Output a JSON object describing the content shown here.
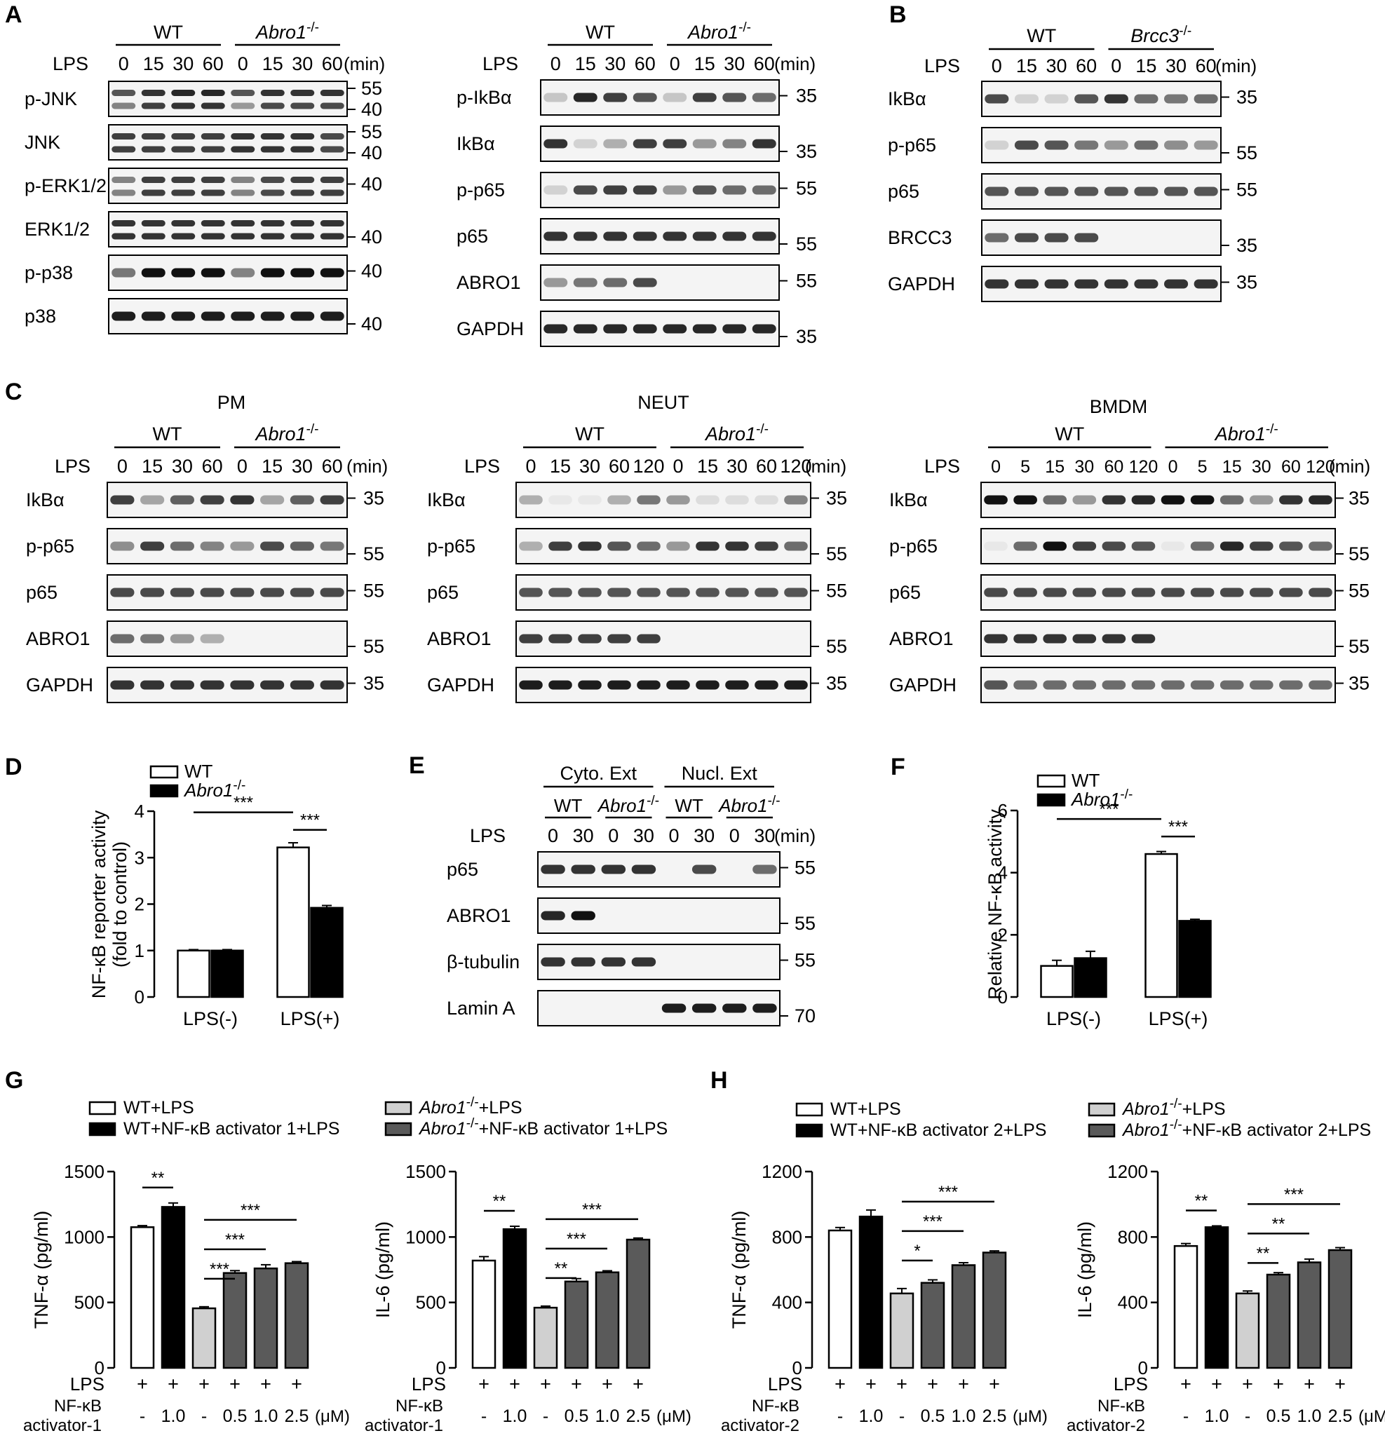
{
  "blots": {
    "A1": {
      "panel_letter": "A",
      "groups": [
        "WT",
        "Abro1-/-"
      ],
      "treatment_label": "LPS",
      "lanes": [
        "0",
        "15",
        "30",
        "60",
        "0",
        "15",
        "30",
        "60"
      ],
      "unit": "(min)",
      "rows": [
        {
          "label": "p-JNK",
          "markers": [
            "55",
            "40"
          ]
        },
        {
          "label": "JNK",
          "markers": [
            "55",
            "40"
          ]
        },
        {
          "label": "p-ERK1/2",
          "markers": [
            "40"
          ]
        },
        {
          "label": "ERK1/2",
          "markers": [
            "40"
          ]
        },
        {
          "label": "p-p38",
          "markers": [
            "40"
          ]
        },
        {
          "label": "p38",
          "markers": [
            "40"
          ]
        }
      ]
    },
    "A2": {
      "groups": [
        "WT",
        "Abro1-/-"
      ],
      "treatment_label": "LPS",
      "lanes": [
        "0",
        "15",
        "30",
        "60",
        "0",
        "15",
        "30",
        "60"
      ],
      "unit": "(min)",
      "rows": [
        {
          "label": "p-IkBα",
          "markers": [
            "35"
          ]
        },
        {
          "label": "IkBα",
          "markers": [
            "35"
          ]
        },
        {
          "label": "p-p65",
          "markers": [
            "55"
          ]
        },
        {
          "label": "p65",
          "markers": [
            "55"
          ]
        },
        {
          "label": "ABRO1",
          "markers": [
            "55"
          ]
        },
        {
          "label": "GAPDH",
          "markers": [
            "35"
          ]
        }
      ]
    },
    "B": {
      "panel_letter": "B",
      "groups": [
        "WT",
        "Brcc3-/-"
      ],
      "treatment_label": "LPS",
      "lanes": [
        "0",
        "15",
        "30",
        "60",
        "0",
        "15",
        "30",
        "60"
      ],
      "unit": "(min)",
      "rows": [
        {
          "label": "IkBα",
          "markers": [
            "35"
          ]
        },
        {
          "label": "p-p65",
          "markers": [
            "55"
          ]
        },
        {
          "label": "p65",
          "markers": [
            "55"
          ]
        },
        {
          "label": "BRCC3",
          "markers": [
            "35"
          ]
        },
        {
          "label": "GAPDH",
          "markers": [
            "35"
          ]
        }
      ]
    },
    "C1": {
      "panel_letter": "C",
      "cell_type": "PM",
      "groups": [
        "WT",
        "Abro1-/-"
      ],
      "treatment_label": "LPS",
      "lanes": [
        "0",
        "15",
        "30",
        "60",
        "0",
        "15",
        "30",
        "60"
      ],
      "unit": "(min)",
      "rows": [
        {
          "label": "IkBα",
          "markers": [
            "35"
          ]
        },
        {
          "label": "p-p65",
          "markers": [
            "55"
          ]
        },
        {
          "label": "p65",
          "markers": [
            "55"
          ]
        },
        {
          "label": "ABRO1",
          "markers": [
            "55"
          ]
        },
        {
          "label": "GAPDH",
          "markers": [
            "35"
          ]
        }
      ]
    },
    "C2": {
      "cell_type": "NEUT",
      "groups": [
        "WT",
        "Abro1-/-"
      ],
      "treatment_label": "LPS",
      "lanes": [
        "0",
        "15",
        "30",
        "60",
        "120",
        "0",
        "15",
        "30",
        "60",
        "120"
      ],
      "unit": "(min)",
      "rows": [
        {
          "label": "IkBα",
          "markers": [
            "35"
          ]
        },
        {
          "label": "p-p65",
          "markers": [
            "55"
          ]
        },
        {
          "label": "p65",
          "markers": [
            "55"
          ]
        },
        {
          "label": "ABRO1",
          "markers": [
            "55"
          ]
        },
        {
          "label": "GAPDH",
          "markers": [
            "35"
          ]
        }
      ]
    },
    "C3": {
      "cell_type": "BMDM",
      "groups": [
        "WT",
        "Abro1-/-"
      ],
      "treatment_label": "LPS",
      "lanes": [
        "0",
        "5",
        "15",
        "30",
        "60",
        "120",
        "0",
        "5",
        "15",
        "30",
        "60",
        "120"
      ],
      "unit": "(min)",
      "rows": [
        {
          "label": "IkBα",
          "markers": [
            "35"
          ]
        },
        {
          "label": "p-p65",
          "markers": [
            "55"
          ]
        },
        {
          "label": "p65",
          "markers": [
            "55"
          ]
        },
        {
          "label": "ABRO1",
          "markers": [
            "55"
          ]
        },
        {
          "label": "GAPDH",
          "markers": [
            "35"
          ]
        }
      ]
    },
    "E": {
      "panel_letter": "E",
      "fractions": [
        "Cyto. Ext",
        "Nucl. Ext"
      ],
      "groups": [
        "WT",
        "Abro1-/-",
        "WT",
        "Abro1-/-"
      ],
      "treatment_label": "LPS",
      "lanes": [
        "0",
        "30",
        "0",
        "30",
        "0",
        "30",
        "0",
        "30"
      ],
      "unit": "(min)",
      "rows": [
        {
          "label": "p65",
          "markers": [
            "55"
          ]
        },
        {
          "label": "ABRO1",
          "markers": [
            "55"
          ]
        },
        {
          "label": "β-tubulin",
          "markers": [
            "55"
          ]
        },
        {
          "label": "Lamin A",
          "markers": [
            "70"
          ]
        }
      ]
    }
  },
  "chart_data": [
    {
      "id": "D",
      "panel_letter": "D",
      "type": "bar",
      "categories": [
        "LPS(-)",
        "LPS(+)"
      ],
      "series": [
        {
          "name": "WT",
          "values": [
            1.0,
            3.22
          ],
          "errors": [
            0.02,
            0.1
          ],
          "color": "#ffffff"
        },
        {
          "name": "Abro1-/-",
          "values": [
            1.0,
            1.92
          ],
          "errors": [
            0.02,
            0.05
          ],
          "color": "#000000"
        }
      ],
      "ylabel_line1": "NF-κB reporter activity",
      "ylabel_line2": "(fold to control)",
      "ylim": [
        0,
        4
      ],
      "yticks": [
        "0",
        "1",
        "2",
        "3",
        "4"
      ],
      "legend": "top-left",
      "significance": [
        {
          "label": "***"
        },
        {
          "label": "***"
        }
      ]
    },
    {
      "id": "F",
      "panel_letter": "F",
      "type": "bar",
      "categories": [
        "LPS(-)",
        "LPS(+)"
      ],
      "series": [
        {
          "name": "WT",
          "values": [
            1.0,
            4.6
          ],
          "errors": [
            0.18,
            0.08
          ],
          "color": "#ffffff"
        },
        {
          "name": "Abro1-/-",
          "values": [
            1.25,
            2.45
          ],
          "errors": [
            0.22,
            0.05
          ],
          "color": "#000000"
        }
      ],
      "ylabel": "Relative NF-κB activity",
      "ylim": [
        0,
        6
      ],
      "yticks": [
        "0",
        "2",
        "4",
        "6"
      ],
      "legend": "top-left",
      "significance": [
        {
          "label": "***"
        },
        {
          "label": "***"
        }
      ]
    },
    {
      "id": "G1",
      "panel_letter": "G",
      "type": "bar",
      "values": [
        1075,
        1230,
        455,
        725,
        760,
        800
      ],
      "errors": [
        12,
        30,
        12,
        18,
        28,
        12
      ],
      "colors": [
        "#ffffff",
        "#000000",
        "#d0d0d0",
        "#5a5a5a",
        "#5a5a5a",
        "#5a5a5a"
      ],
      "ylabel": "TNF-α (pg/ml)",
      "ylim": [
        0,
        1500
      ],
      "yticks": [
        "0",
        "500",
        "1000",
        "1500"
      ],
      "row1_label": "LPS",
      "row1": [
        "+",
        "+",
        "+",
        "+",
        "+",
        "+"
      ],
      "row2_label": [
        "NF-κB",
        "activator-1"
      ],
      "row2": [
        "-",
        "1.0",
        "-",
        "0.5",
        "1.0",
        "2.5"
      ],
      "row2_unit": "(μM)",
      "significance": [
        {
          "label": "**"
        },
        {
          "label": "***"
        },
        {
          "label": "***"
        },
        {
          "label": "***"
        }
      ]
    },
    {
      "id": "G2",
      "type": "bar",
      "values": [
        820,
        1060,
        460,
        660,
        730,
        980
      ],
      "errors": [
        30,
        22,
        12,
        22,
        12,
        12
      ],
      "colors": [
        "#ffffff",
        "#000000",
        "#d0d0d0",
        "#5a5a5a",
        "#5a5a5a",
        "#5a5a5a"
      ],
      "ylabel": "IL-6 (pg/ml)",
      "ylim": [
        0,
        1500
      ],
      "yticks": [
        "0",
        "500",
        "1000",
        "1500"
      ],
      "row1_label": "LPS",
      "row1": [
        "+",
        "+",
        "+",
        "+",
        "+",
        "+"
      ],
      "row2_label": [
        "NF-κB",
        "activator-1"
      ],
      "row2": [
        "-",
        "1.0",
        "-",
        "0.5",
        "1.0",
        "2.5"
      ],
      "row2_unit": "(μM)",
      "significance": [
        {
          "label": "**"
        },
        {
          "label": "**"
        },
        {
          "label": "***"
        },
        {
          "label": "***"
        }
      ]
    },
    {
      "id": "H1",
      "panel_letter": "H",
      "type": "bar",
      "values": [
        840,
        925,
        455,
        520,
        628,
        705
      ],
      "errors": [
        18,
        40,
        30,
        18,
        15,
        10
      ],
      "colors": [
        "#ffffff",
        "#000000",
        "#d0d0d0",
        "#5a5a5a",
        "#5a5a5a",
        "#5a5a5a"
      ],
      "ylabel": "TNF-α (pg/ml)",
      "ylim": [
        0,
        1200
      ],
      "yticks": [
        "0",
        "400",
        "800",
        "1200"
      ],
      "row1_label": "LPS",
      "row1": [
        "+",
        "+",
        "+",
        "+",
        "+",
        "+"
      ],
      "row2_label": [
        "NF-κB",
        "activator-2"
      ],
      "row2": [
        "-",
        "1.0",
        "-",
        "0.5",
        "1.0",
        "2.5"
      ],
      "row2_unit": "(μM)",
      "significance": [
        {
          "label": "*"
        },
        {
          "label": "***"
        },
        {
          "label": "***"
        }
      ]
    },
    {
      "id": "H2",
      "type": "bar",
      "values": [
        745,
        860,
        455,
        570,
        645,
        720
      ],
      "errors": [
        15,
        8,
        15,
        12,
        20,
        15
      ],
      "colors": [
        "#ffffff",
        "#000000",
        "#d0d0d0",
        "#5a5a5a",
        "#5a5a5a",
        "#5a5a5a"
      ],
      "ylabel": "IL-6 (pg/ml)",
      "ylim": [
        0,
        1200
      ],
      "yticks": [
        "0",
        "400",
        "800",
        "1200"
      ],
      "row1_label": "LPS",
      "row1": [
        "+",
        "+",
        "+",
        "+",
        "+",
        "+"
      ],
      "row2_label": [
        "NF-κB",
        "activator-2"
      ],
      "row2": [
        "-",
        "1.0",
        "-",
        "0.5",
        "1.0",
        "2.5"
      ],
      "row2_unit": "(μM)",
      "significance": [
        {
          "label": "**"
        },
        {
          "label": "**"
        },
        {
          "label": "**"
        },
        {
          "label": "***"
        }
      ]
    }
  ],
  "legends": {
    "G": [
      {
        "label": "WT+LPS",
        "color": "#ffffff"
      },
      {
        "label": "WT+NF-κB activator 1+LPS",
        "color": "#000000"
      },
      {
        "label": "Abro1-/-+LPS",
        "color": "#d0d0d0"
      },
      {
        "label": "Abro1-/-+NF-κB activator 1+LPS",
        "color": "#5a5a5a"
      }
    ],
    "H": [
      {
        "label": "WT+LPS",
        "color": "#ffffff"
      },
      {
        "label": "WT+NF-κB activator 2+LPS",
        "color": "#000000"
      },
      {
        "label": "Abro1-/-+LPS",
        "color": "#d0d0d0"
      },
      {
        "label": "Abro1-/-+NF-κB activator 2+LPS",
        "color": "#5a5a5a"
      }
    ]
  }
}
